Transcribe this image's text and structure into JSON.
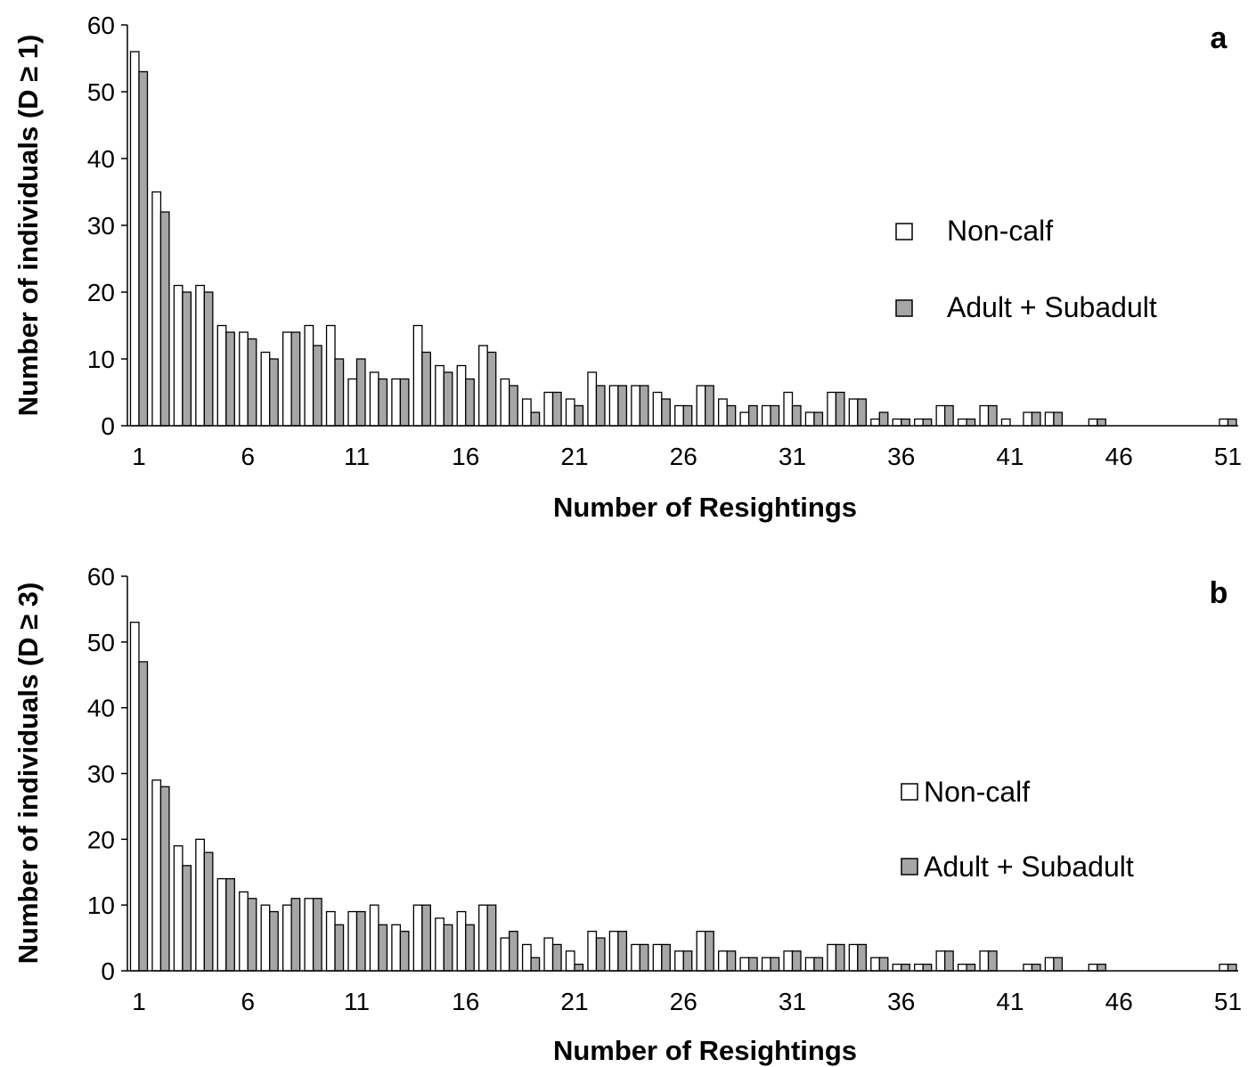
{
  "chart_data": [
    {
      "type": "bar",
      "panel_label": "a",
      "xlabel": "Number of Resightings",
      "ylabel": "Number of individuals (D ≥ 1)",
      "ylim": [
        0,
        60
      ],
      "yticks": [
        0,
        10,
        20,
        30,
        40,
        50,
        60
      ],
      "xticks": [
        1,
        6,
        11,
        16,
        21,
        26,
        31,
        36,
        41,
        46,
        51
      ],
      "x": [
        1,
        2,
        3,
        4,
        5,
        6,
        7,
        8,
        9,
        10,
        11,
        12,
        13,
        14,
        15,
        16,
        17,
        18,
        19,
        20,
        21,
        22,
        23,
        24,
        25,
        26,
        27,
        28,
        29,
        30,
        31,
        32,
        33,
        34,
        35,
        36,
        37,
        38,
        39,
        40,
        41,
        42,
        43,
        44,
        45,
        46,
        47,
        48,
        49,
        50,
        51
      ],
      "series": [
        {
          "name": "Non-calf",
          "color": "#ffffff",
          "values": [
            56,
            35,
            21,
            21,
            15,
            14,
            11,
            14,
            15,
            15,
            7,
            8,
            7,
            15,
            9,
            9,
            12,
            7,
            4,
            5,
            4,
            8,
            6,
            6,
            5,
            3,
            6,
            4,
            2,
            3,
            5,
            2,
            5,
            4,
            1,
            1,
            1,
            3,
            1,
            3,
            1,
            2,
            2,
            0,
            1,
            0,
            0,
            0,
            0,
            0,
            1
          ]
        },
        {
          "name": "Adult + Subadult",
          "color": "#a6a6a6",
          "values": [
            53,
            32,
            20,
            20,
            14,
            13,
            10,
            14,
            12,
            10,
            10,
            7,
            7,
            11,
            8,
            7,
            11,
            6,
            2,
            5,
            3,
            6,
            6,
            6,
            4,
            3,
            6,
            3,
            3,
            3,
            3,
            2,
            5,
            4,
            2,
            1,
            1,
            3,
            1,
            3,
            0,
            2,
            2,
            0,
            1,
            0,
            0,
            0,
            0,
            0,
            1
          ]
        }
      ],
      "legend_position": "right"
    },
    {
      "type": "bar",
      "panel_label": "b",
      "xlabel": "Number of Resightings",
      "ylabel": "Number of individuals (D ≥ 3)",
      "ylim": [
        0,
        60
      ],
      "yticks": [
        0,
        10,
        20,
        30,
        40,
        50,
        60
      ],
      "xticks": [
        1,
        6,
        11,
        16,
        21,
        26,
        31,
        36,
        41,
        46,
        51
      ],
      "x": [
        1,
        2,
        3,
        4,
        5,
        6,
        7,
        8,
        9,
        10,
        11,
        12,
        13,
        14,
        15,
        16,
        17,
        18,
        19,
        20,
        21,
        22,
        23,
        24,
        25,
        26,
        27,
        28,
        29,
        30,
        31,
        32,
        33,
        34,
        35,
        36,
        37,
        38,
        39,
        40,
        41,
        42,
        43,
        44,
        45,
        46,
        47,
        48,
        49,
        50,
        51
      ],
      "series": [
        {
          "name": "Non-calf",
          "color": "#ffffff",
          "values": [
            53,
            29,
            19,
            20,
            14,
            12,
            10,
            10,
            11,
            9,
            9,
            10,
            7,
            10,
            8,
            9,
            10,
            5,
            4,
            5,
            3,
            6,
            6,
            4,
            4,
            3,
            6,
            3,
            2,
            2,
            3,
            2,
            4,
            4,
            2,
            1,
            1,
            3,
            1,
            3,
            0,
            1,
            2,
            0,
            1,
            0,
            0,
            0,
            0,
            0,
            1
          ]
        },
        {
          "name": "Adult + Subadult",
          "color": "#a6a6a6",
          "values": [
            47,
            28,
            16,
            18,
            14,
            11,
            9,
            11,
            11,
            7,
            9,
            7,
            6,
            10,
            7,
            7,
            10,
            6,
            2,
            4,
            1,
            5,
            6,
            4,
            4,
            3,
            6,
            3,
            2,
            2,
            3,
            2,
            4,
            4,
            2,
            1,
            1,
            3,
            1,
            3,
            0,
            1,
            2,
            0,
            1,
            0,
            0,
            0,
            0,
            0,
            1
          ]
        }
      ],
      "legend_position": "right"
    }
  ]
}
